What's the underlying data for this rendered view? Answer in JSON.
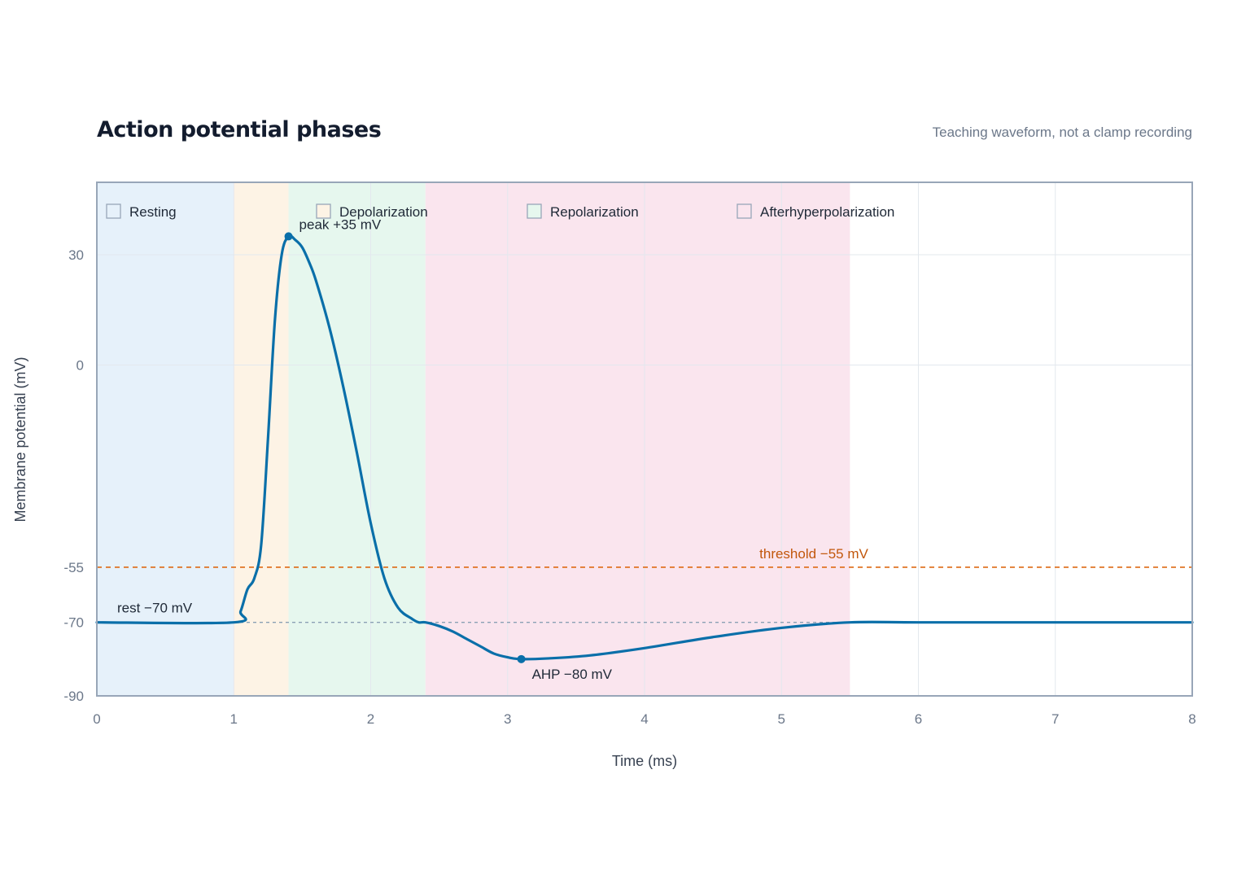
{
  "title": "Action potential phases",
  "subtitle": "Teaching waveform, not a clamp recording",
  "colors": {
    "trace": "#0a6fa9",
    "threshold": "#de6a14",
    "rest_line": "#8aa0b4",
    "frame": "#98a6b8",
    "grid": "#e3e8ee",
    "phase_resting": "#e6f1fa",
    "phase_depolarization": "#fdf3e5",
    "phase_repolarization": "#e6f7ee",
    "phase_afterhyperpolarization": "#fae5ee"
  },
  "chart_data": {
    "type": "line",
    "title": "Action potential phases",
    "subtitle": "Teaching waveform, not a clamp recording",
    "xlabel": "Time (ms)",
    "ylabel": "Membrane potential (mV)",
    "xlim": [
      0,
      8
    ],
    "ylim": [
      -90,
      50
    ],
    "xticks": [
      0,
      1,
      2,
      3,
      4,
      5,
      6,
      7,
      8
    ],
    "yticks": [
      -90,
      -70,
      -55,
      0,
      30
    ],
    "ytick_labels": [
      "-90",
      "-70",
      "-55",
      "0",
      "30"
    ],
    "grid": true,
    "legend_position": "top-left",
    "phases": [
      {
        "name": "Resting",
        "start": 0,
        "end": 1,
        "color": "#e6f1fa"
      },
      {
        "name": "Depolarization",
        "start": 1,
        "end": 1.4,
        "color": "#fdf3e5"
      },
      {
        "name": "Repolarization",
        "start": 1.4,
        "end": 2.4,
        "color": "#e6f7ee"
      },
      {
        "name": "Afterhyperpolarization",
        "start": 2.4,
        "end": 5.5,
        "color": "#fae5ee"
      }
    ],
    "series": [
      {
        "x": [
          0,
          1.0,
          1.05,
          1.1,
          1.15,
          1.2,
          1.25,
          1.3,
          1.35,
          1.4,
          1.45,
          1.5,
          1.55,
          1.6,
          1.7,
          1.8,
          1.9,
          2.0,
          2.1,
          2.2,
          2.3,
          2.35,
          2.4,
          2.5,
          2.6,
          2.7,
          2.8,
          2.9,
          3.0,
          3.1,
          3.3,
          3.6,
          4.0,
          4.5,
          5.0,
          5.5,
          6.0,
          7.0,
          8.0
        ],
        "y": [
          -70,
          -70,
          -67,
          -61,
          -58,
          -49,
          -20,
          12,
          30,
          35,
          34,
          32,
          28,
          23,
          10,
          -6,
          -24,
          -43,
          -58,
          -66,
          -69,
          -70,
          -70,
          -71,
          -72.5,
          -74.5,
          -76.5,
          -78.5,
          -79.5,
          -80,
          -79.8,
          -79,
          -77,
          -74,
          -71.5,
          -70,
          -70,
          -70,
          -70
        ]
      }
    ],
    "reference_lines": [
      {
        "name": "threshold",
        "y": -55,
        "label": "threshold −55 mV"
      },
      {
        "name": "rest",
        "y": -70,
        "label": "rest −70 mV"
      }
    ],
    "annotations": [
      {
        "name": "peak",
        "x": 1.4,
        "y": 35,
        "label": "peak +35 mV"
      },
      {
        "name": "ahp",
        "x": 3.1,
        "y": -80,
        "label": "AHP −80 mV"
      }
    ]
  }
}
